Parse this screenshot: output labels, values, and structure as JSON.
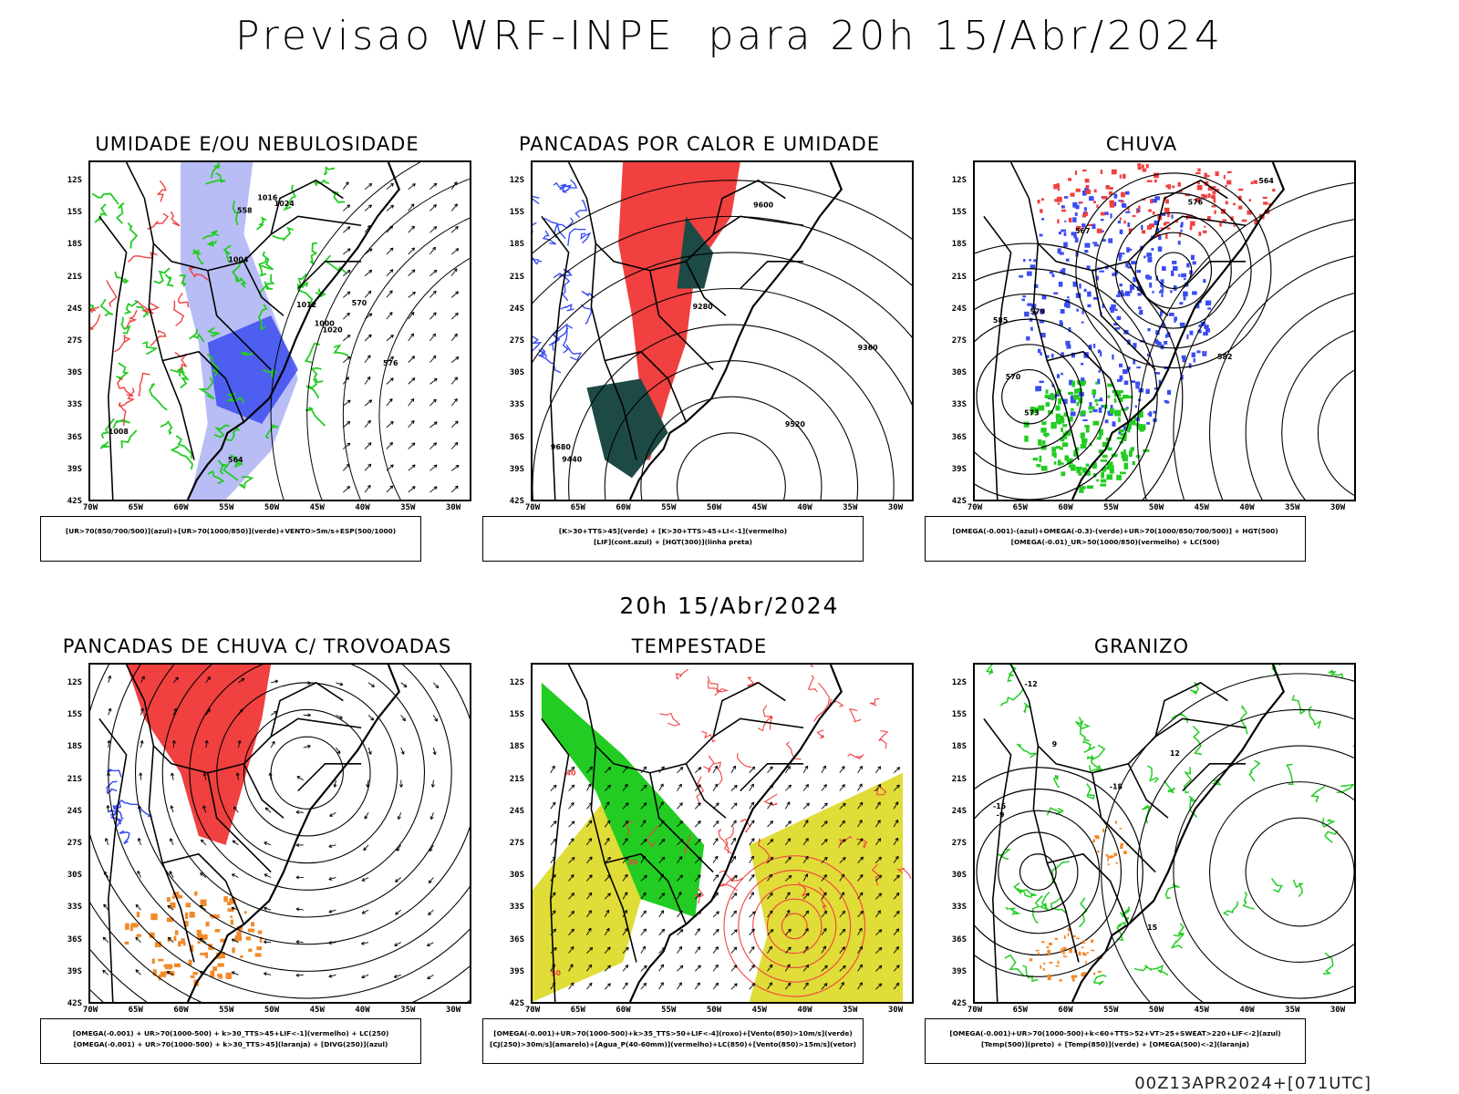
{
  "header": {
    "title": "Previsao WRF-INPE  para 20h 15/Abr/2024",
    "subtitle": "20h 15/Abr/2024",
    "footer": "00Z13APR2024+[071UTC]"
  },
  "axes": {
    "lat_labels": [
      "12S",
      "15S",
      "18S",
      "21S",
      "24S",
      "27S",
      "30S",
      "33S",
      "36S",
      "39S",
      "42S"
    ],
    "lon_labels": [
      "70W",
      "65W",
      "60W",
      "55W",
      "50W",
      "45W",
      "40W",
      "35W",
      "30W"
    ]
  },
  "colors": {
    "blue": "#3a4df0",
    "lavender": "#b9bdf5",
    "green": "#22cc22",
    "red": "#f04040",
    "orange": "#f08a2a",
    "darkteal": "#1d4a45",
    "yellow": "#e0dc38",
    "black": "#000000"
  },
  "panels": [
    {
      "id": "umidade",
      "title": "UMIDADE E/OU NEBULOSIDADE",
      "legend": [
        "[UR>70(850/700/500)](azul)+[UR>70(1000/850)](verde)+VENTO>5m/s+ESP(500/1000)"
      ],
      "contour_labels": [
        "1008",
        "1012",
        "1016",
        "1020",
        "1024",
        "1004",
        "1000",
        "570",
        "558",
        "564",
        "576"
      ]
    },
    {
      "id": "calor",
      "title": "PANCADAS POR CALOR E UMIDADE",
      "legend": [
        "[K>30+TTS>45](verde) + [K>30+TTS>45+LI<-1](vermelho)",
        "[LIF](cont.azul) + [HGT(300)](linha preta)"
      ],
      "contour_labels": [
        "9680",
        "9600",
        "9520",
        "9440",
        "9360",
        "9280"
      ]
    },
    {
      "id": "chuva",
      "title": "CHUVA",
      "legend": [
        "[OMEGA(-0.001)-(azul)+OMEGA(-0.3)-(verde)+UR>70(1000/850/700/500)] + HGT(500)",
        "[OMEGA(-0.01)_UR>50(1000/850)(vermelho) + LC(500)"
      ],
      "contour_labels": [
        "585",
        "582",
        "579",
        "576",
        "573",
        "570",
        "567",
        "564"
      ]
    },
    {
      "id": "trovoadas",
      "title": "PANCADAS DE CHUVA C/ TROVOADAS",
      "legend": [
        "[OMEGA(-0.001) + UR>70(1000-500) + k>30_TTS>45+LIF<-1](vermelho) + LC(250)",
        "[OMEGA(-0.001) + UR>70(1000-500) + k>30_TTS>45](laranja) + [DIVG(250)](azul)"
      ],
      "contour_labels": []
    },
    {
      "id": "tempestade",
      "title": "TEMPESTADE",
      "legend": [
        "[OMEGA(-0.001)+UR>70(1000-500)+k>35_TTS>50+LIF<-4](roxo)+[Vento(850)>10m/s](verde)",
        "[CJ(250)>30m/s](amarelo)+[Agua_P(40-60mm)](vermelho)+LC(850)+[Vento(850)>15m/s](vetor)"
      ],
      "contour_labels": [
        "50",
        "40",
        "30"
      ]
    },
    {
      "id": "granizo",
      "title": "GRANIZO",
      "legend": [
        "[OMEGA(-0.001)+UR>70(1000-500)+k<60+TTS>52+VT>25+SWEAT>220+LIF<-2](azul)",
        "[Temp(500)](preto) + [Temp(850)](verde) + [OMEGA(500)<-2](laranja)"
      ],
      "contour_labels": [
        "-15",
        "-18",
        "-12",
        "-9",
        "15",
        "12",
        "9"
      ]
    }
  ]
}
